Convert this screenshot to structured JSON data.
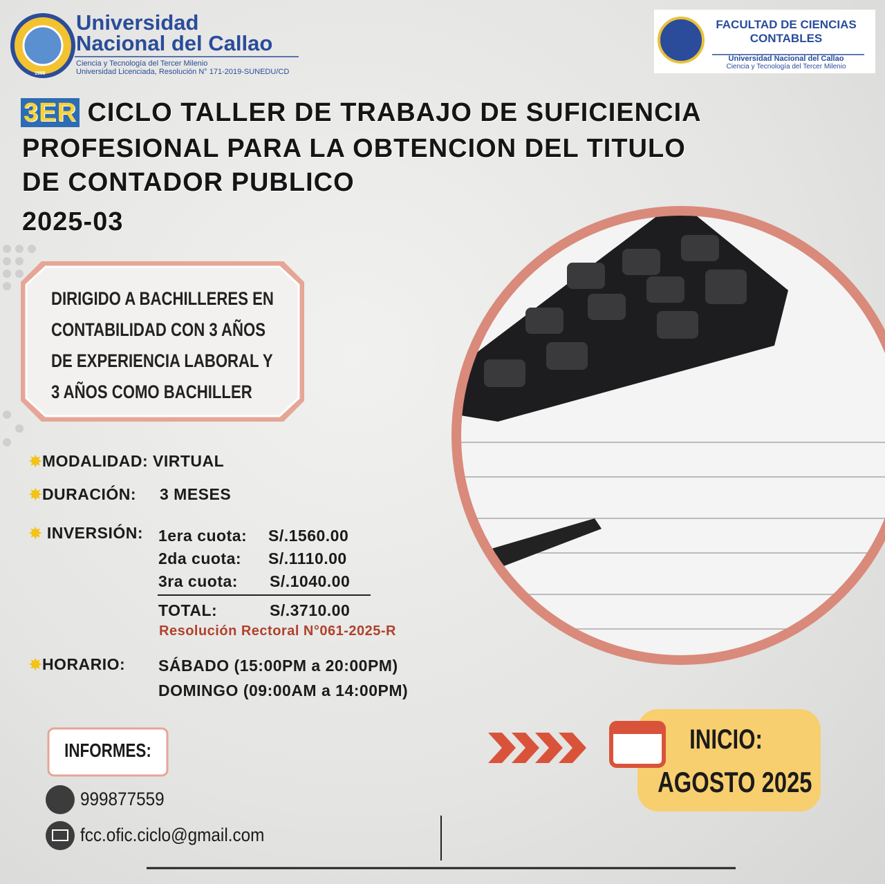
{
  "header": {
    "university": {
      "name_line1": "Universidad",
      "name_line2": "Nacional del Callao",
      "tagline": "Ciencia y Tecnología del Tercer Milenio",
      "license": "Universidad Licenciada, Resolución N° 171-2019-SUNEDU/CD",
      "seal_year": "1966"
    },
    "faculty": {
      "name_line1": "FACULTAD DE CIENCIAS",
      "name_line2": "CONTABLES",
      "university": "Universidad Nacional del Callao",
      "tagline": "Ciencia y Tecnología del Tercer Milenio"
    }
  },
  "title": {
    "badge": "3ER",
    "line1": "CICLO TALLER DE TRABAJO DE SUFICIENCIA",
    "line2": "PROFESIONAL PARA LA OBTENCION DEL TITULO",
    "line3": "DE CONTADOR PUBLICO",
    "period": "2025-03"
  },
  "audience": {
    "lines": [
      "DIRIGIDO A BACHILLERES EN",
      "CONTABILIDAD CON 3 AÑOS",
      "DE EXPERIENCIA LABORAL Y",
      "3 AÑOS COMO BACHILLER"
    ]
  },
  "details": {
    "modality": "MODALIDAD: VIRTUAL",
    "duration": {
      "label": "DURACIÓN:",
      "value": "3 MESES"
    },
    "investment": {
      "label": "INVERSIÓN:",
      "installments": [
        {
          "name": "1era cuota:",
          "amount": "S/.1560.00"
        },
        {
          "name": "2da cuota:",
          "amount": "S/.1110.00"
        },
        {
          "name": "3ra cuota:",
          "amount": "S/.1040.00"
        }
      ],
      "total": {
        "name": "TOTAL:",
        "amount": "S/.3710.00"
      },
      "resolution": "Resolución Rectoral N°061-2025-R"
    },
    "schedule": {
      "label": "HORARIO:",
      "lines": [
        "SÁBADO (15:00PM a 20:00PM)",
        "DOMINGO (09:00AM a 14:00PM)"
      ]
    }
  },
  "contact": {
    "title": "INFORMES:",
    "phone": "999877559",
    "email": "fcc.ofic.ciclo@gmail.com"
  },
  "start": {
    "label": "INICIO:",
    "date": "AGOSTO 2025"
  }
}
